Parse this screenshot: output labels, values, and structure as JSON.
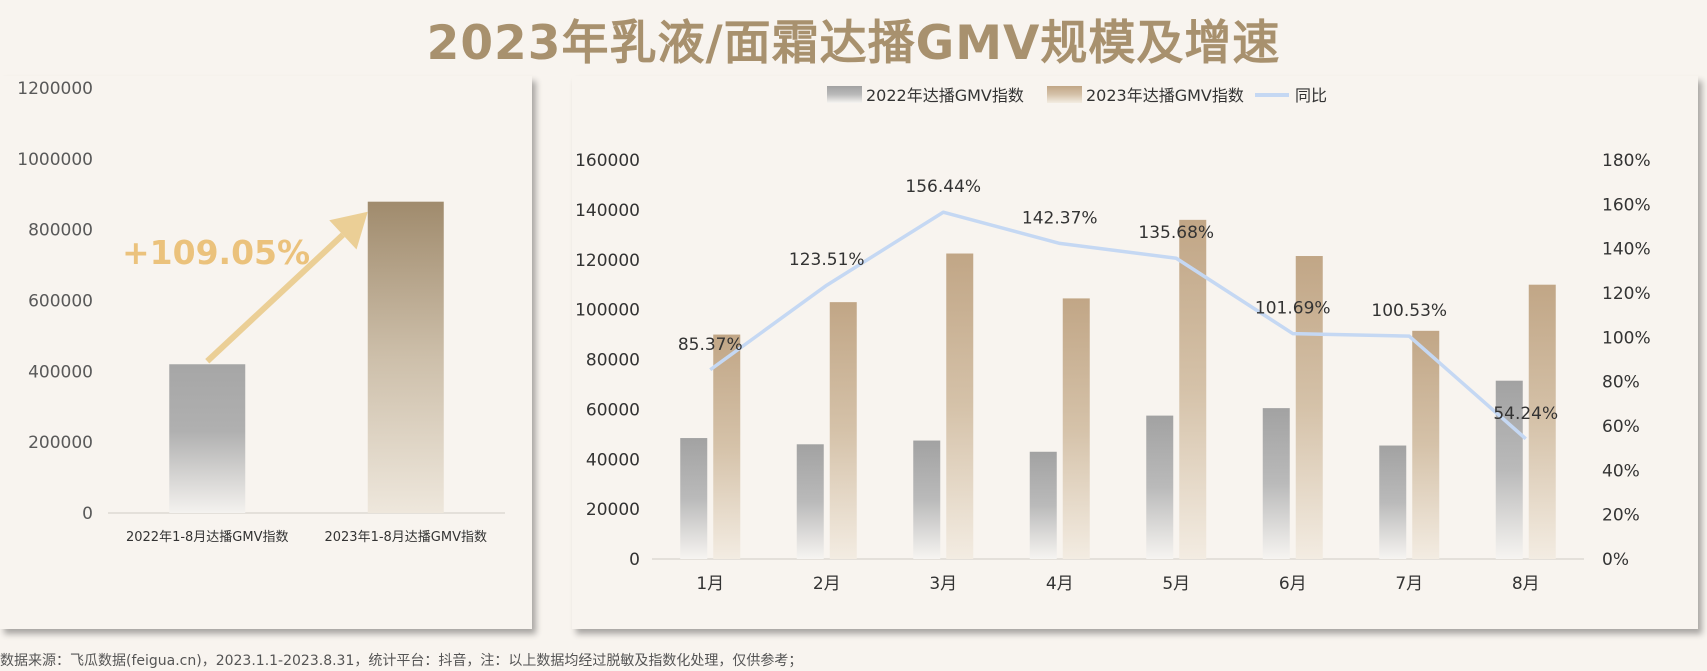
{
  "title": "2023年乳液/面霜达播GMV规模及增速",
  "footer": "数据来源：飞瓜数据(feigua.cn)，2023.1.1-2023.8.31，统计平台：抖音，注：以上数据均经过脱敏及指数化处理，仅供参考；",
  "colors": {
    "title": "#a8916e",
    "gray_bar": "#a6a6a6",
    "tan_bar": "#c0a584",
    "line": "#c5d8f3",
    "arrow": "#ebcf96",
    "growth_label": "#ebc27c"
  },
  "chart_data": [
    {
      "type": "bar",
      "categories": [
        "2022年1-8月达播GMV指数",
        "2023年1-8月达播GMV指数"
      ],
      "values": [
        420000,
        879000
      ],
      "ylim": [
        0,
        1200000
      ],
      "yticks": [
        "0",
        "200000",
        "400000",
        "600000",
        "800000",
        "1000000",
        "1200000"
      ],
      "annotation": "+109.05%"
    },
    {
      "type": "bar",
      "categories": [
        "1月",
        "2月",
        "3月",
        "4月",
        "5月",
        "6月",
        "7月",
        "8月"
      ],
      "series": [
        {
          "name": "2022年达播GMV指数",
          "type": "bar",
          "values": [
            48500,
            46000,
            47500,
            43000,
            57500,
            60500,
            45500,
            71500
          ]
        },
        {
          "name": "2023年达播GMV指数",
          "type": "bar",
          "values": [
            90000,
            103000,
            122500,
            104500,
            136000,
            121500,
            91500,
            110000
          ]
        },
        {
          "name": "同比",
          "type": "line",
          "axis": "right",
          "values": [
            85.37,
            123.51,
            156.44,
            142.37,
            135.68,
            101.69,
            100.53,
            54.24
          ],
          "labels": [
            "85.37%",
            "123.51%",
            "156.44%",
            "142.37%",
            "135.68%",
            "101.69%",
            "100.53%",
            "54.24%"
          ]
        }
      ],
      "ylim": [
        0,
        160000
      ],
      "yticks": [
        "0",
        "20000",
        "40000",
        "60000",
        "80000",
        "100000",
        "120000",
        "140000",
        "160000"
      ],
      "y2lim": [
        0,
        180
      ],
      "y2ticks": [
        "0%",
        "20%",
        "40%",
        "60%",
        "80%",
        "100%",
        "120%",
        "140%",
        "160%",
        "180%"
      ],
      "legend": "top"
    }
  ]
}
